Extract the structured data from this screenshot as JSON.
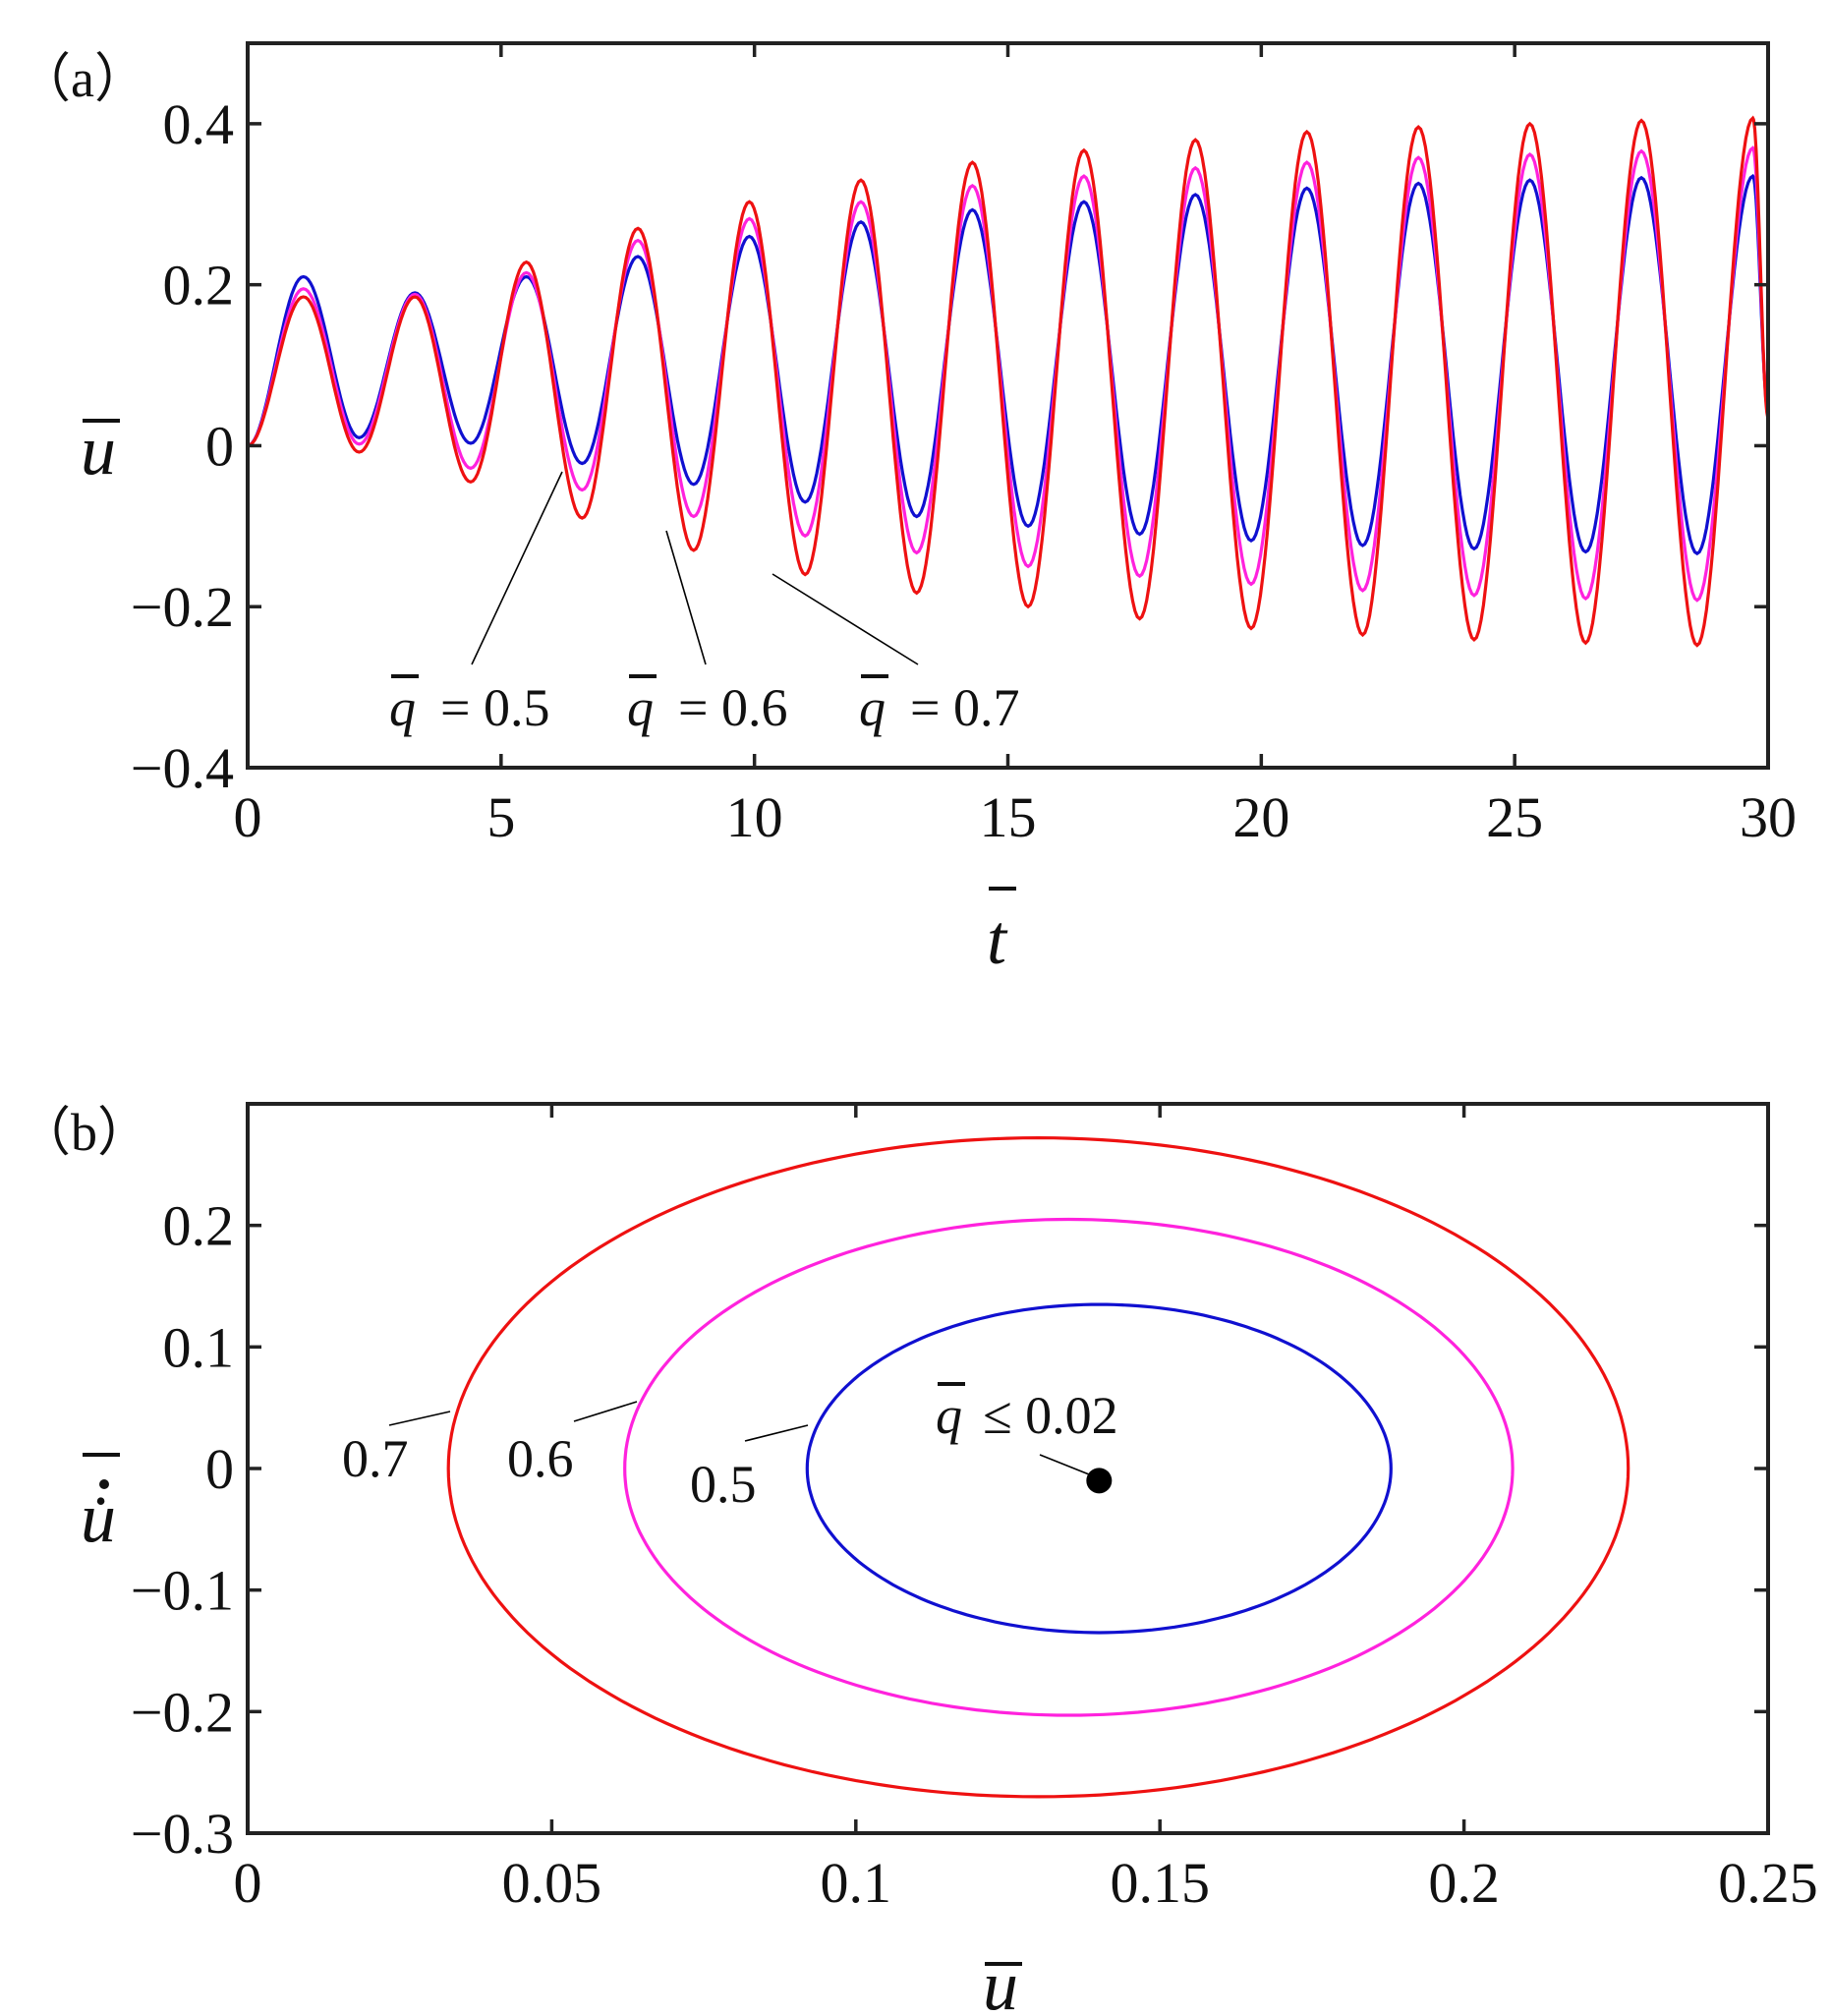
{
  "chart_data": [
    {
      "type": "line",
      "panel_label": "（a）",
      "xlabel": "t",
      "ylabel": "u",
      "xlim": [
        0,
        30
      ],
      "ylim": [
        -0.4,
        0.5
      ],
      "xticks": [
        0,
        5,
        10,
        15,
        20,
        25,
        30
      ],
      "xtick_labels": [
        "0",
        "5",
        "10",
        "15",
        "20",
        "25",
        "30"
      ],
      "yticks": [
        -0.4,
        -0.2,
        0,
        0.2,
        0.4
      ],
      "ytick_labels": [
        "−0.4",
        "−0.2",
        "0",
        "0.2",
        "0.4"
      ],
      "series": [
        {
          "name": "q = 0.5",
          "color": "#1010d0",
          "peaks": [
            0.21,
            0.19,
            0.21,
            0.235,
            0.26,
            0.278,
            0.293,
            0.303,
            0.312,
            0.32,
            0.326,
            0.33,
            0.333,
            0.335
          ],
          "troughs": [
            0.01,
            0.003,
            -0.022,
            -0.048,
            -0.07,
            -0.088,
            -0.1,
            -0.11,
            -0.118,
            -0.124,
            -0.128,
            -0.132,
            -0.134
          ]
        },
        {
          "name": "q = 0.6",
          "color": "#ff22dd",
          "peaks": [
            0.195,
            0.188,
            0.215,
            0.255,
            0.282,
            0.303,
            0.323,
            0.335,
            0.345,
            0.352,
            0.358,
            0.362,
            0.366,
            0.37
          ],
          "troughs": [
            0.002,
            -0.028,
            -0.055,
            -0.088,
            -0.112,
            -0.133,
            -0.15,
            -0.162,
            -0.172,
            -0.18,
            -0.186,
            -0.19,
            -0.192
          ]
        },
        {
          "name": "q = 0.7",
          "color": "#ee1111",
          "peaks": [
            0.185,
            0.185,
            0.228,
            0.27,
            0.303,
            0.33,
            0.352,
            0.367,
            0.38,
            0.39,
            0.396,
            0.4,
            0.404,
            0.407
          ],
          "troughs": [
            -0.008,
            -0.045,
            -0.09,
            -0.13,
            -0.16,
            -0.183,
            -0.2,
            -0.215,
            -0.227,
            -0.235,
            -0.241,
            -0.245,
            -0.248
          ]
        }
      ],
      "annotations": [
        {
          "symbol": "q",
          "text": "= 0.5",
          "points_to_t": 6.2
        },
        {
          "symbol": "q",
          "text": "= 0.6",
          "points_to_t": 8.2
        },
        {
          "symbol": "q",
          "text": "= 0.7",
          "points_to_t": 10.4
        }
      ]
    },
    {
      "type": "line",
      "panel_label": "（b）",
      "xlabel": "u",
      "ylabel": "u̇",
      "xlim": [
        0,
        0.25
      ],
      "ylim": [
        -0.3,
        0.3
      ],
      "xticks": [
        0,
        0.05,
        0.1,
        0.15,
        0.2,
        0.25
      ],
      "xtick_labels": [
        "0",
        "0.05",
        "0.1",
        "0.15",
        "0.2",
        "0.25"
      ],
      "yticks": [
        -0.3,
        -0.2,
        -0.1,
        0,
        0.1,
        0.2
      ],
      "ytick_labels": [
        "−0.3",
        "−0.2",
        "−0.1",
        "0",
        "0.1",
        "0.2"
      ],
      "series": [
        {
          "name": "0.7",
          "color": "#ee1111",
          "u_min": 0.033,
          "u_max": 0.227,
          "v_max": 0.272,
          "v_min": -0.27,
          "u_at_vmax": 0.13
        },
        {
          "name": "0.6",
          "color": "#ff22dd",
          "u_min": 0.062,
          "u_max": 0.208,
          "v_max": 0.205,
          "v_min": -0.203,
          "u_at_vmax": 0.135
        },
        {
          "name": "0.5",
          "color": "#1010d0",
          "u_min": 0.092,
          "u_max": 0.188,
          "v_max": 0.135,
          "v_min": -0.135,
          "u_at_vmax": 0.14
        }
      ],
      "point": {
        "u": 0.14,
        "v": -0.01,
        "symbol": "q",
        "label": "≤ 0.02"
      },
      "annotations": [
        {
          "text": "0.7",
          "series": "0.7"
        },
        {
          "text": "0.6",
          "series": "0.6"
        },
        {
          "text": "0.5",
          "series": "0.5"
        }
      ]
    }
  ]
}
